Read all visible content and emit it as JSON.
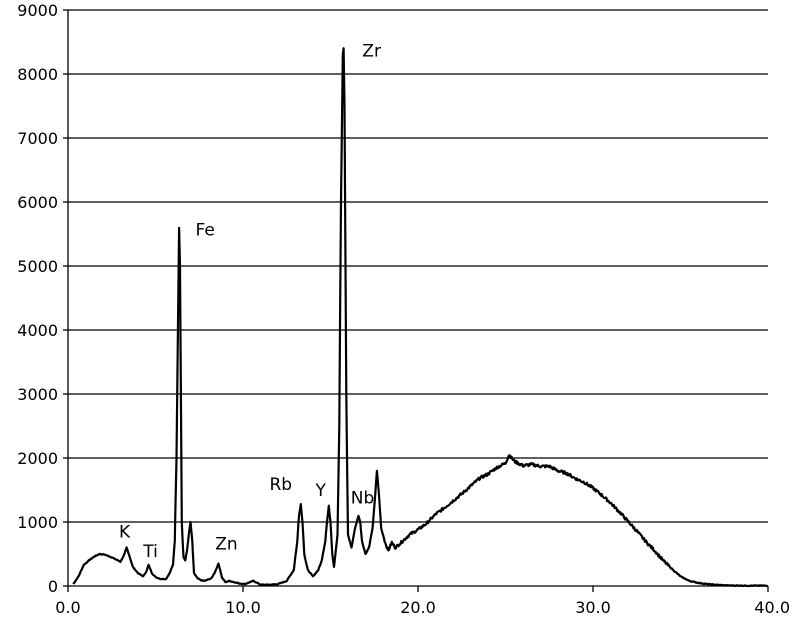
{
  "chart_data": {
    "type": "line",
    "title": "",
    "xlabel": "",
    "ylabel": "",
    "xlim": [
      0,
      40
    ],
    "ylim": [
      0,
      9000
    ],
    "grid": "horizontal",
    "legend": "none",
    "x_ticks": [
      0,
      10,
      20,
      30,
      40
    ],
    "x_tick_labels": [
      "0.0",
      "10.0",
      "20.0",
      "30.0",
      "40.0"
    ],
    "y_ticks": [
      0,
      1000,
      2000,
      3000,
      4000,
      5000,
      6000,
      7000,
      8000,
      9000
    ],
    "y_tick_labels": [
      "0",
      "1000",
      "2000",
      "3000",
      "4000",
      "5000",
      "6000",
      "7000",
      "8000",
      "9000"
    ],
    "line_color": "#000000",
    "series": [
      {
        "x": [
          0.3,
          0.6,
          0.9,
          1.2,
          1.5,
          1.8,
          2.1,
          2.4,
          2.7,
          3.0,
          3.2,
          3.35,
          3.5,
          3.7,
          4.0,
          4.3,
          4.5,
          4.6,
          4.8,
          5.0,
          5.3,
          5.6,
          5.8,
          6.0,
          6.1,
          6.2,
          6.3,
          6.35,
          6.4,
          6.45,
          6.5,
          6.6,
          6.7,
          6.8,
          6.9,
          7.0,
          7.1,
          7.2,
          7.4,
          7.6,
          7.8,
          8.0,
          8.2,
          8.4,
          8.6,
          8.7,
          8.8,
          9.0,
          9.2,
          9.5,
          9.8,
          10.1,
          10.4,
          10.6,
          10.8,
          11.0,
          11.5,
          12.0,
          12.5,
          12.9,
          13.1,
          13.2,
          13.3,
          13.4,
          13.5,
          13.7,
          14.0,
          14.3,
          14.5,
          14.7,
          14.8,
          14.9,
          15.0,
          15.1,
          15.2,
          15.4,
          15.5,
          15.6,
          15.7,
          15.75,
          15.8,
          15.9,
          16.0,
          16.2,
          16.4,
          16.6,
          16.7,
          16.8,
          17.0,
          17.2,
          17.4,
          17.55,
          17.65,
          17.75,
          17.9,
          18.1,
          18.3,
          18.5,
          18.7,
          19.0,
          19.5,
          20.0,
          20.5,
          21.0,
          21.5,
          22.0,
          22.5,
          23.0,
          23.5,
          24.0,
          24.5,
          25.0,
          25.2,
          25.5,
          26.0,
          26.5,
          27.0,
          27.5,
          28.0,
          28.5,
          29.0,
          29.5,
          30.0,
          30.5,
          31.0,
          31.5,
          32.0,
          32.5,
          33.0,
          33.5,
          34.0,
          34.5,
          35.0,
          35.5,
          36.0,
          36.5,
          37.0,
          37.5,
          38.0,
          38.5,
          39.0,
          39.5,
          40.0
        ],
        "y": [
          30,
          150,
          330,
          400,
          460,
          500,
          490,
          460,
          420,
          380,
          480,
          600,
          480,
          300,
          200,
          150,
          240,
          330,
          200,
          140,
          110,
          110,
          200,
          330,
          700,
          2000,
          4500,
          5600,
          5000,
          3000,
          1000,
          450,
          400,
          550,
          800,
          1000,
          700,
          200,
          120,
          90,
          80,
          100,
          120,
          220,
          350,
          250,
          130,
          60,
          80,
          60,
          40,
          30,
          60,
          80,
          50,
          20,
          20,
          30,
          80,
          250,
          700,
          1100,
          1280,
          1000,
          500,
          250,
          150,
          250,
          400,
          700,
          1000,
          1250,
          1000,
          500,
          300,
          800,
          2500,
          6000,
          8300,
          8400,
          7500,
          3000,
          800,
          600,
          900,
          1100,
          1000,
          700,
          500,
          600,
          900,
          1400,
          1800,
          1500,
          900,
          700,
          550,
          680,
          600,
          670,
          800,
          880,
          980,
          1120,
          1220,
          1330,
          1440,
          1560,
          1680,
          1750,
          1850,
          1920,
          2050,
          1950,
          1880,
          1900,
          1870,
          1870,
          1800,
          1760,
          1680,
          1620,
          1530,
          1420,
          1300,
          1160,
          1010,
          860,
          700,
          560,
          400,
          270,
          150,
          80,
          50,
          30,
          20,
          10,
          8,
          6,
          5,
          5,
          5
        ]
      }
    ],
    "annotations": [
      {
        "text": "K",
        "x": 3.35,
        "y": 600
      },
      {
        "text": "Ti",
        "x": 4.6,
        "y": 330
      },
      {
        "text": "Fe",
        "x": 6.35,
        "y": 5600
      },
      {
        "text": "Zn",
        "x": 8.6,
        "y": 350
      },
      {
        "text": "Rb",
        "x": 13.3,
        "y": 1280
      },
      {
        "text": "Y",
        "x": 14.9,
        "y": 1250
      },
      {
        "text": "Nb",
        "x": 16.6,
        "y": 1100
      },
      {
        "text": "Zr",
        "x": 15.75,
        "y": 8400
      }
    ]
  }
}
